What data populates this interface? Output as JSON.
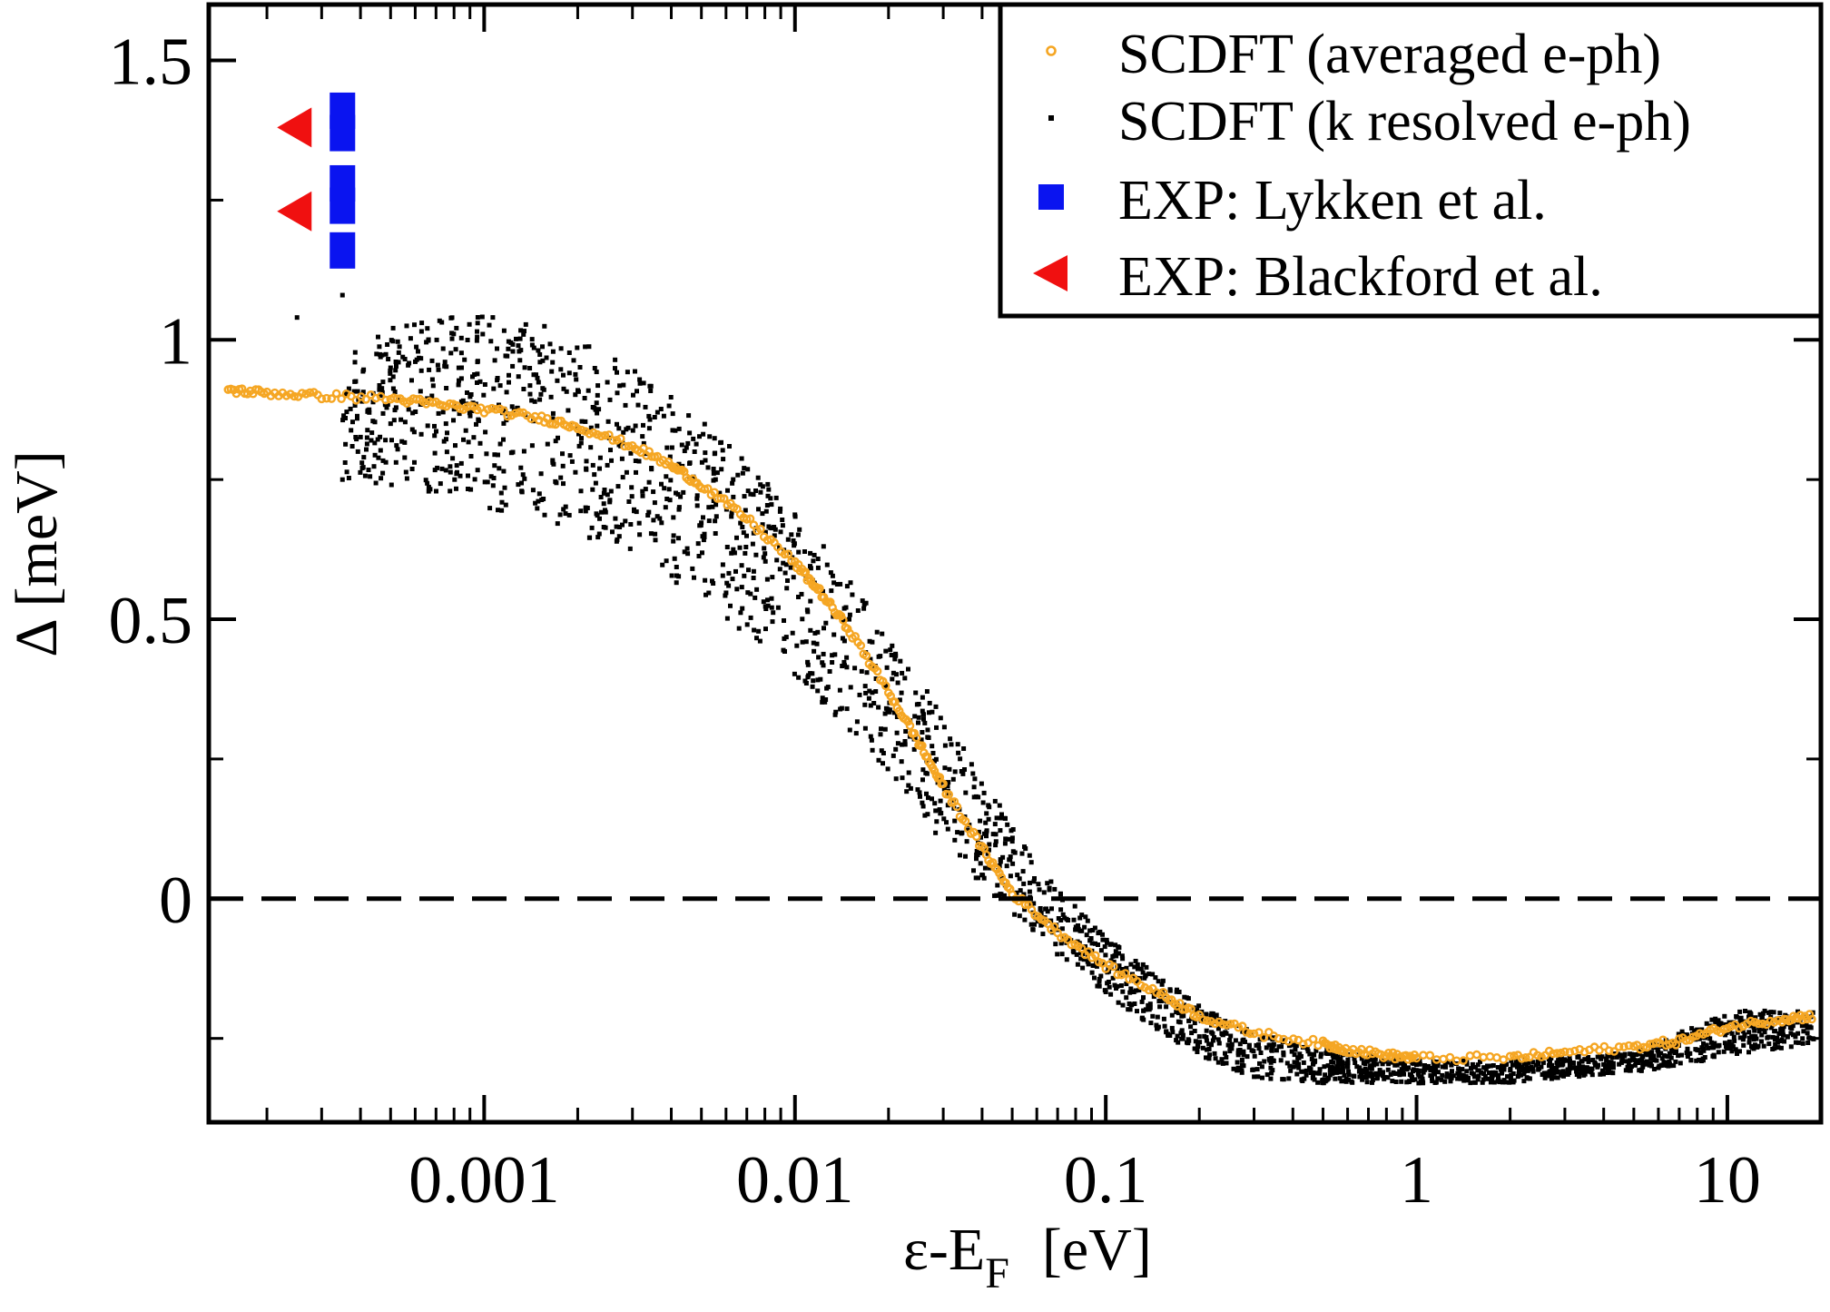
{
  "chart_data": {
    "type": "scatter",
    "title": "",
    "xlabel": "ε-E",
    "xlabel_sub": "F",
    "xlabel_unit": "[eV]",
    "ylabel": "Δ [meV]",
    "xscale": "log",
    "xlim": [
      0.00013,
      20
    ],
    "ylim": [
      -0.4,
      1.6
    ],
    "x_tick_labels": [
      "0.001",
      "0.01",
      "0.1",
      "1",
      "10"
    ],
    "x_ticks": [
      0.001,
      0.01,
      0.1,
      1,
      10
    ],
    "y_tick_labels": [
      "0",
      "0.5",
      "1",
      "1.5"
    ],
    "y_ticks": [
      0,
      0.5,
      1,
      1.5
    ],
    "y_minor_ticks": [
      -0.25,
      0.25,
      0.75,
      1.25
    ],
    "grid": false,
    "legend_position": "top-right",
    "reference_lines": [
      {
        "axis": "y",
        "value": 0,
        "style": "dashed",
        "color": "#000000"
      }
    ],
    "series": [
      {
        "name": "SCDFT (averaged e-ph)",
        "marker": "open-circle",
        "color": "#f5a623",
        "points": [
          [
            0.00015,
            0.91
          ],
          [
            0.0002,
            0.905
          ],
          [
            0.0003,
            0.9
          ],
          [
            0.0005,
            0.895
          ],
          [
            0.0007,
            0.885
          ],
          [
            0.001,
            0.875
          ],
          [
            0.0015,
            0.86
          ],
          [
            0.002,
            0.845
          ],
          [
            0.003,
            0.81
          ],
          [
            0.004,
            0.775
          ],
          [
            0.005,
            0.74
          ],
          [
            0.007,
            0.68
          ],
          [
            0.01,
            0.6
          ],
          [
            0.012,
            0.55
          ],
          [
            0.015,
            0.48
          ],
          [
            0.02,
            0.37
          ],
          [
            0.025,
            0.28
          ],
          [
            0.03,
            0.2
          ],
          [
            0.04,
            0.09
          ],
          [
            0.05,
            0.01
          ],
          [
            0.07,
            -0.06
          ],
          [
            0.1,
            -0.12
          ],
          [
            0.15,
            -0.17
          ],
          [
            0.2,
            -0.21
          ],
          [
            0.3,
            -0.24
          ],
          [
            0.5,
            -0.26
          ],
          [
            0.6,
            -0.27
          ],
          [
            0.8,
            -0.28
          ],
          [
            1,
            -0.285
          ],
          [
            2,
            -0.285
          ],
          [
            3,
            -0.275
          ],
          [
            5,
            -0.265
          ],
          [
            7,
            -0.255
          ],
          [
            10,
            -0.23
          ],
          [
            15,
            -0.215
          ],
          [
            19,
            -0.21
          ]
        ]
      },
      {
        "name": "SCDFT (k resolved e-ph)",
        "marker": "dot",
        "color": "#000000",
        "band": [
          [
            0.00035,
            0.98,
            0.75
          ],
          [
            0.0005,
            1.02,
            0.74
          ],
          [
            0.0008,
            1.05,
            0.72
          ],
          [
            0.001,
            1.05,
            0.7
          ],
          [
            0.0015,
            1.03,
            0.68
          ],
          [
            0.002,
            1.0,
            0.65
          ],
          [
            0.003,
            0.95,
            0.62
          ],
          [
            0.004,
            0.9,
            0.57
          ],
          [
            0.005,
            0.86,
            0.54
          ],
          [
            0.007,
            0.78,
            0.47
          ],
          [
            0.01,
            0.7,
            0.4
          ],
          [
            0.015,
            0.58,
            0.3
          ],
          [
            0.02,
            0.47,
            0.22
          ],
          [
            0.03,
            0.33,
            0.1
          ],
          [
            0.04,
            0.22,
            0.02
          ],
          [
            0.05,
            0.13,
            -0.03
          ],
          [
            0.07,
            0.02,
            -0.1
          ],
          [
            0.1,
            -0.07,
            -0.17
          ],
          [
            0.15,
            -0.14,
            -0.24
          ],
          [
            0.2,
            -0.19,
            -0.28
          ],
          [
            0.3,
            -0.24,
            -0.32
          ],
          [
            0.5,
            -0.27,
            -0.33
          ],
          [
            1,
            -0.29,
            -0.33
          ],
          [
            2,
            -0.29,
            -0.33
          ],
          [
            5,
            -0.275,
            -0.31
          ],
          [
            7,
            -0.24,
            -0.3
          ],
          [
            10,
            -0.2,
            -0.28
          ],
          [
            19,
            -0.2,
            -0.26
          ]
        ],
        "outliers": [
          [
            0.00013,
            0.8
          ],
          [
            0.00025,
            1.04
          ],
          [
            0.00035,
            1.08
          ],
          [
            0.00035,
            0.75
          ],
          [
            0.0005,
            0.95
          ],
          [
            0.0005,
            0.85
          ]
        ]
      },
      {
        "name": "EXP: Lykken et al.",
        "marker": "filled-square",
        "color": "#0a14f0",
        "points": [
          [
            0.00035,
            1.41
          ],
          [
            0.00035,
            1.37
          ],
          [
            0.00035,
            1.28
          ],
          [
            0.00035,
            1.24
          ],
          [
            0.00035,
            1.16
          ]
        ]
      },
      {
        "name": "EXP: Blackford et al.",
        "marker": "left-triangle",
        "color": "#f01010",
        "points": [
          [
            0.00025,
            1.38
          ],
          [
            0.00025,
            1.23
          ]
        ]
      }
    ]
  }
}
